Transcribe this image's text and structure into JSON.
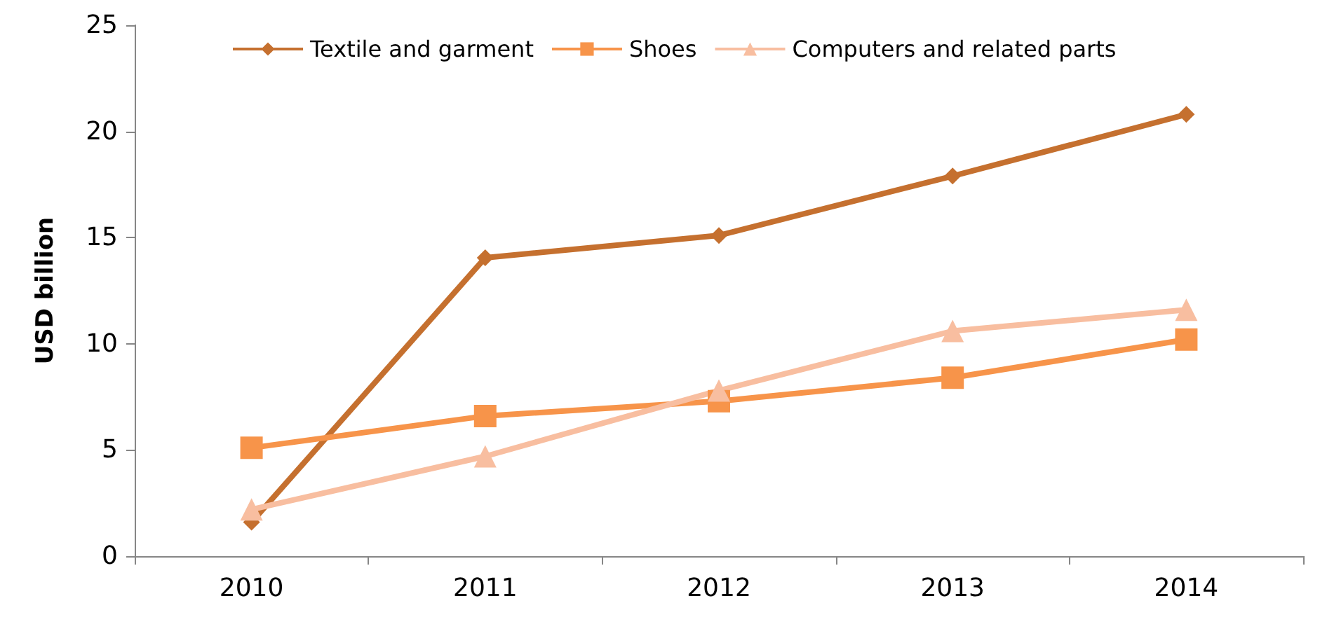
{
  "chart_data": {
    "type": "line",
    "ylabel": "USD billion",
    "categories": [
      "2010",
      "2011",
      "2012",
      "2013",
      "2014"
    ],
    "series": [
      {
        "name": "Textile and garment",
        "color": "#c5702f",
        "marker": "diamond",
        "values": [
          1.6,
          14.05,
          15.1,
          17.9,
          20.8
        ]
      },
      {
        "name": "Shoes",
        "color": "#f7944a",
        "marker": "square",
        "values": [
          5.1,
          6.6,
          7.3,
          8.4,
          10.2
        ]
      },
      {
        "name": "Computers and related parts",
        "color": "#f8bea0",
        "marker": "triangle",
        "values": [
          2.2,
          4.7,
          7.8,
          10.6,
          11.6
        ]
      }
    ],
    "ylim": [
      0,
      25
    ],
    "yticks": [
      0,
      5,
      10,
      15,
      20,
      25
    ],
    "grid": false,
    "legend": "top"
  }
}
